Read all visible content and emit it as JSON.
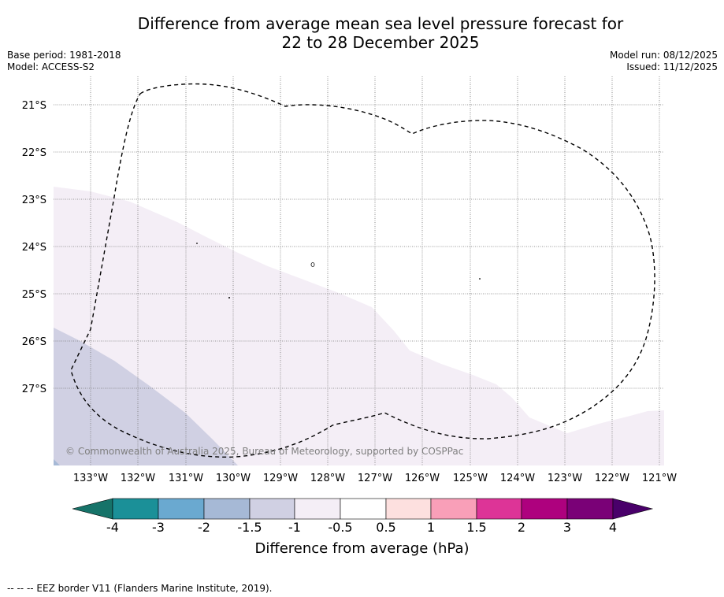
{
  "title_line1": "Difference from average mean sea level pressure forecast for",
  "title_line2": "22 to 28 December 2025",
  "base_period": "Base period: 1981-2018",
  "model": "Model: ACCESS-S2",
  "model_run": "Model run: 08/12/2025",
  "issued": "Issued: 11/12/2025",
  "copyright": "© Commonwealth of Australia 2025, Bureau of Meteorology, supported by COSPPac",
  "longitude_labels": [
    "133°W",
    "132°W",
    "131°W",
    "130°W",
    "129°W",
    "128°W",
    "127°W",
    "126°W",
    "125°W",
    "124°W",
    "123°W",
    "122°W",
    "121°W"
  ],
  "latitude_labels": [
    "21°S",
    "22°S",
    "23°S",
    "24°S",
    "25°S",
    "26°S",
    "27°S"
  ],
  "colorbar": {
    "ticks": [
      "-4",
      "-3",
      "-2",
      "-1.5",
      "-1",
      "-0.5",
      "0.5",
      "1",
      "1.5",
      "2",
      "3",
      "4"
    ],
    "colors": [
      "#167369",
      "#1b9098",
      "#6aa9d0",
      "#a6b9d6",
      "#d0d0e3",
      "#f4eef6",
      "#ffffff",
      "#fde0df",
      "#f99fb8",
      "#dd3497",
      "#ae017e",
      "#7a0177",
      "#49006a"
    ],
    "title": "Difference from average (hPa)"
  },
  "footnote": "--  --  -- EEZ border V11 (Flanders Marine Institute, 2019)."
}
